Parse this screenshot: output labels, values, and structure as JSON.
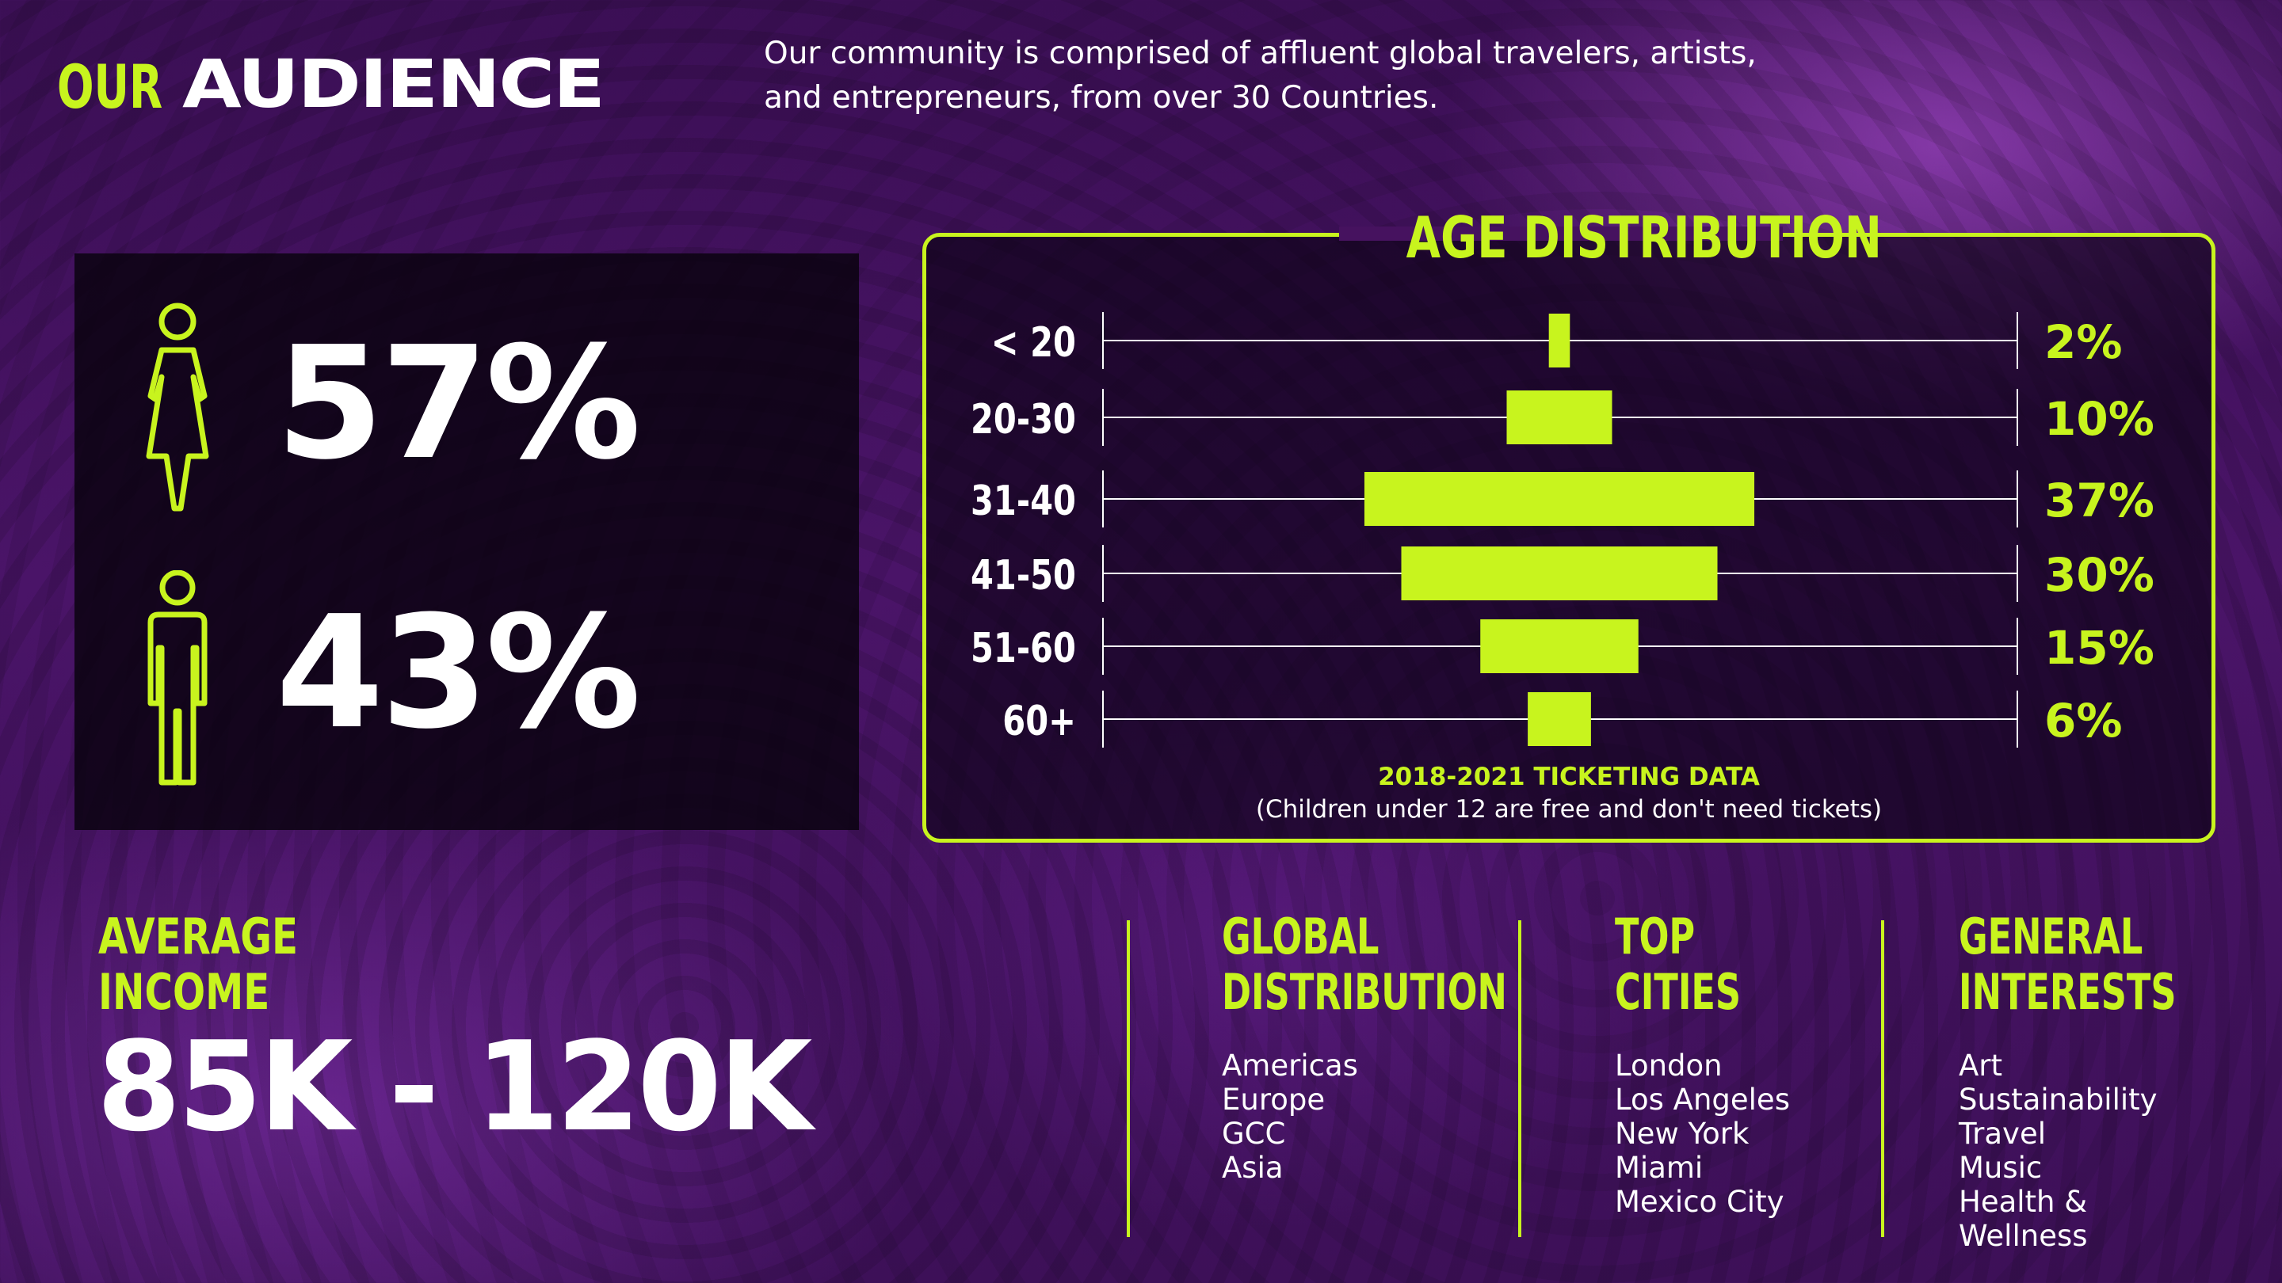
{
  "header": {
    "title_prefix": "OUR",
    "title_main": "AUDIENCE",
    "subtitle_line1": "Our community is comprised of affluent global travelers, artists,",
    "subtitle_line2": "and entrepreneurs, from over 30 Countries."
  },
  "gender": {
    "female_pct": "57%",
    "male_pct": "43%",
    "icons": [
      "female-icon",
      "male-icon"
    ]
  },
  "age_distribution": {
    "title": "AGE DISTRIBUTION",
    "source": "2018-2021 TICKETING DATA",
    "note": "(Children under 12 are free and don't need tickets)"
  },
  "chart_data": {
    "type": "bar",
    "title": "AGE DISTRIBUTION",
    "categories": [
      "< 20",
      "20-30",
      "31-40",
      "41-50",
      "51-60",
      "60+"
    ],
    "values": [
      2,
      10,
      37,
      30,
      15,
      6
    ],
    "value_labels": [
      "2%",
      "10%",
      "37%",
      "30%",
      "15%",
      "6%"
    ],
    "unit": "%",
    "orientation": "horizontal-centered",
    "bar_color": "#c8f41e"
  },
  "income": {
    "label_line1": "AVERAGE",
    "label_line2": "INCOME",
    "value": "85K - 120K"
  },
  "columns": [
    {
      "title_line1": "GLOBAL",
      "title_line2": "DISTRIBUTION",
      "items": [
        "Americas",
        "Europe",
        "GCC",
        "Asia"
      ]
    },
    {
      "title_line1": "TOP",
      "title_line2": "CITIES",
      "items": [
        "London",
        "Los Angeles",
        "New York",
        "Miami",
        "Mexico City"
      ]
    },
    {
      "title_line1": "GENERAL",
      "title_line2": "INTERESTS",
      "items": [
        "Art",
        "Sustainability",
        "Travel",
        "Music",
        "Health &",
        "Wellness"
      ]
    }
  ],
  "colors": {
    "accent": "#c8f41e",
    "background": "#46125f",
    "text": "#ffffff"
  }
}
